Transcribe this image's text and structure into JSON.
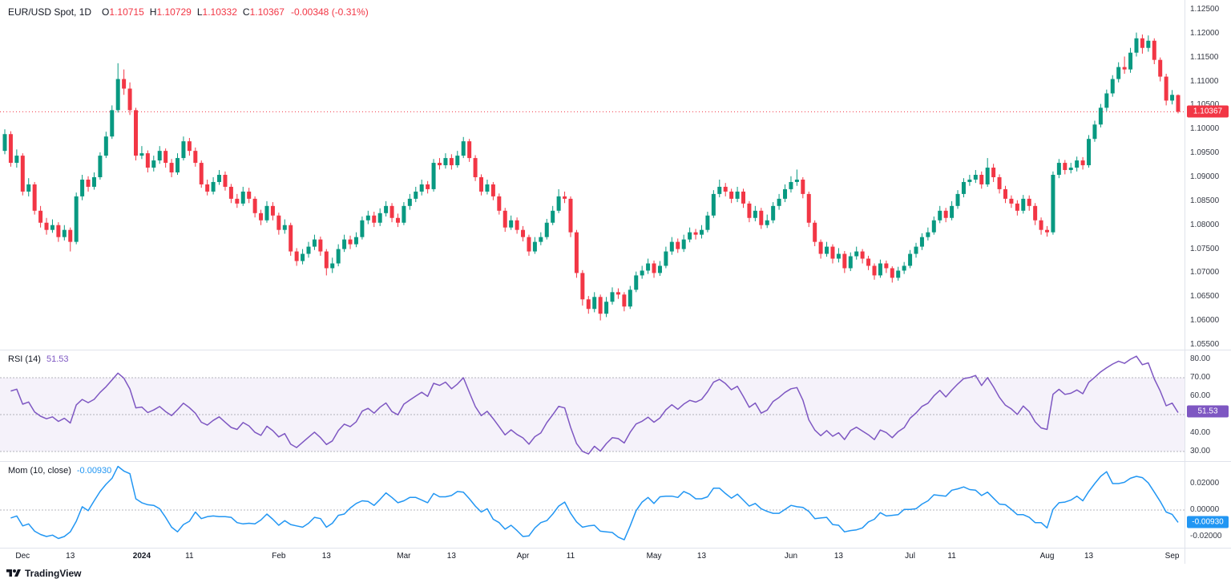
{
  "header": {
    "symbol": "EUR/USD Spot, 1D",
    "ohlc_labels": [
      "O",
      "H",
      "L",
      "C"
    ],
    "ohlc_values": [
      "1.10715",
      "1.10729",
      "1.10332",
      "1.10367"
    ],
    "change": "-0.00348 (-0.31%)"
  },
  "indicators": {
    "rsi": {
      "label": "RSI (14)",
      "value": "51.53",
      "color": "#7E57C2"
    },
    "mom": {
      "label": "Mom (10, close)",
      "value": "-0.00930",
      "color": "#2196F3"
    }
  },
  "price_axis": {
    "ticks": [
      "1.12500",
      "1.12000",
      "1.11500",
      "1.11000",
      "1.10500",
      "1.10000",
      "1.09500",
      "1.09000",
      "1.08500",
      "1.08000",
      "1.07500",
      "1.07000",
      "1.06500",
      "1.06000",
      "1.05500"
    ],
    "last_price": {
      "text": "1.10367",
      "value": 1.10367,
      "color": "#F23645"
    }
  },
  "rsi_axis": {
    "ticks": [
      "80.00",
      "70.00",
      "60.00",
      "50.00",
      "40.00",
      "30.00"
    ],
    "badge": {
      "text": "51.53",
      "value": 51.53
    }
  },
  "mom_axis": {
    "ticks": [
      "0.02000",
      "0.00000",
      "-0.02000"
    ],
    "badge": {
      "text": "-0.00930",
      "value": -0.0093
    }
  },
  "time_axis": {
    "ticks": [
      {
        "label": "Dec",
        "i": 3
      },
      {
        "label": "13",
        "i": 11
      },
      {
        "label": "2024",
        "i": 23,
        "bold": true
      },
      {
        "label": "11",
        "i": 31
      },
      {
        "label": "Feb",
        "i": 46
      },
      {
        "label": "13",
        "i": 54
      },
      {
        "label": "Mar",
        "i": 67
      },
      {
        "label": "13",
        "i": 75
      },
      {
        "label": "Apr",
        "i": 87
      },
      {
        "label": "11",
        "i": 95
      },
      {
        "label": "May",
        "i": 109
      },
      {
        "label": "13",
        "i": 117
      },
      {
        "label": "Jun",
        "i": 132
      },
      {
        "label": "13",
        "i": 140
      },
      {
        "label": "Jul",
        "i": 152
      },
      {
        "label": "11",
        "i": 159
      },
      {
        "label": "Aug",
        "i": 175
      },
      {
        "label": "13",
        "i": 182
      },
      {
        "label": "Sep",
        "i": 196
      }
    ]
  },
  "footer": {
    "logo_text": "TradingView"
  },
  "chart_data": {
    "type": "candlestick+indicators",
    "symbol": "EUR/USD Spot",
    "timeframe": "1D",
    "price_range": [
      1.054,
      1.127
    ],
    "rsi_period": 14,
    "mom_period": 10,
    "rsi_band": [
      30,
      70
    ],
    "rsi_axis_range": [
      24.8,
      85.2
    ],
    "mom_axis_range": [
      -0.0285,
      0.037
    ],
    "colors": {
      "up": "#089981",
      "down": "#F23645",
      "rsi": "#7E57C2",
      "mom": "#2196F3",
      "band": "rgba(126,87,194,0.08)",
      "grid_dash": "#9598A1",
      "separator": "#E0E3EB"
    },
    "candles": [
      [
        1.0955,
        1.1,
        1.0948,
        1.099
      ],
      [
        1.099,
        1.0996,
        1.0922,
        1.093
      ],
      [
        1.093,
        1.0958,
        1.092,
        1.0945
      ],
      [
        1.0945,
        1.095,
        1.0862,
        1.087
      ],
      [
        1.087,
        1.0898,
        1.086,
        1.0885
      ],
      [
        1.0885,
        1.089,
        1.0822,
        1.083
      ],
      [
        1.083,
        1.084,
        1.0795,
        1.0805
      ],
      [
        1.0805,
        1.0815,
        1.078,
        1.079
      ],
      [
        1.079,
        1.0812,
        1.0784,
        1.08
      ],
      [
        1.08,
        1.0806,
        1.0765,
        1.0775
      ],
      [
        1.0775,
        1.08,
        1.0768,
        1.079
      ],
      [
        1.079,
        1.0795,
        1.0745,
        1.0765
      ],
      [
        1.0765,
        1.0868,
        1.076,
        1.086
      ],
      [
        1.086,
        1.0905,
        1.0852,
        1.0895
      ],
      [
        1.0895,
        1.0902,
        1.087,
        1.088
      ],
      [
        1.088,
        1.091,
        1.0874,
        1.09
      ],
      [
        1.09,
        1.0952,
        1.0895,
        1.0945
      ],
      [
        1.0945,
        1.0995,
        1.094,
        1.0985
      ],
      [
        1.0985,
        1.105,
        1.098,
        1.104
      ],
      [
        1.104,
        1.1138,
        1.1035,
        1.1105
      ],
      [
        1.1105,
        1.1125,
        1.1072,
        1.1085
      ],
      [
        1.1085,
        1.1098,
        1.103,
        1.104
      ],
      [
        1.104,
        1.1045,
        1.0935,
        1.0945
      ],
      [
        1.0945,
        1.0965,
        1.0938,
        1.095
      ],
      [
        1.095,
        1.0956,
        1.091,
        1.092
      ],
      [
        1.092,
        1.0945,
        1.0912,
        1.0935
      ],
      [
        1.0935,
        1.0965,
        1.0928,
        1.0955
      ],
      [
        1.0955,
        1.096,
        1.092,
        1.093
      ],
      [
        1.093,
        1.0938,
        1.09,
        1.091
      ],
      [
        1.091,
        1.095,
        1.0905,
        1.094
      ],
      [
        1.094,
        1.0985,
        1.0935,
        1.0975
      ],
      [
        1.0975,
        1.0982,
        1.0945,
        1.0955
      ],
      [
        1.0955,
        1.0962,
        1.0922,
        1.093
      ],
      [
        1.093,
        1.0935,
        1.0878,
        1.0885
      ],
      [
        1.0885,
        1.0895,
        1.0862,
        1.087
      ],
      [
        1.087,
        1.09,
        1.0864,
        1.089
      ],
      [
        1.089,
        1.0915,
        1.0884,
        1.0905
      ],
      [
        1.0905,
        1.0912,
        1.0872,
        1.088
      ],
      [
        1.088,
        1.0886,
        1.0846,
        1.0855
      ],
      [
        1.0855,
        1.0865,
        1.0836,
        1.0845
      ],
      [
        1.0845,
        1.088,
        1.084,
        1.087
      ],
      [
        1.087,
        1.0878,
        1.0846,
        1.0855
      ],
      [
        1.0855,
        1.086,
        1.0816,
        1.0825
      ],
      [
        1.0825,
        1.0832,
        1.08,
        1.081
      ],
      [
        1.081,
        1.085,
        1.0805,
        1.084
      ],
      [
        1.084,
        1.0848,
        1.081,
        1.082
      ],
      [
        1.082,
        1.0826,
        1.078,
        1.079
      ],
      [
        1.079,
        1.0812,
        1.0782,
        1.08
      ],
      [
        1.08,
        1.0805,
        1.0736,
        1.0745
      ],
      [
        1.0745,
        1.0752,
        1.0715,
        1.0725
      ],
      [
        1.0725,
        1.075,
        1.0718,
        1.074
      ],
      [
        1.074,
        1.0765,
        1.0732,
        1.0755
      ],
      [
        1.0755,
        1.078,
        1.0748,
        1.077
      ],
      [
        1.077,
        1.0776,
        1.0736,
        1.0745
      ],
      [
        1.0745,
        1.075,
        1.0695,
        1.071
      ],
      [
        1.071,
        1.0732,
        1.07,
        1.072
      ],
      [
        1.072,
        1.076,
        1.0714,
        1.075
      ],
      [
        1.075,
        1.078,
        1.0744,
        1.077
      ],
      [
        1.077,
        1.0778,
        1.075,
        1.076
      ],
      [
        1.076,
        1.0785,
        1.0754,
        1.0775
      ],
      [
        1.0775,
        1.0818,
        1.077,
        1.081
      ],
      [
        1.081,
        1.083,
        1.0802,
        1.082
      ],
      [
        1.082,
        1.0828,
        1.0796,
        1.0805
      ],
      [
        1.0805,
        1.0835,
        1.0798,
        1.0825
      ],
      [
        1.0825,
        1.085,
        1.0818,
        1.084
      ],
      [
        1.084,
        1.0846,
        1.0806,
        1.0815
      ],
      [
        1.0815,
        1.0824,
        1.0796,
        1.0805
      ],
      [
        1.0805,
        1.0848,
        1.08,
        1.084
      ],
      [
        1.084,
        1.0865,
        1.0832,
        1.0855
      ],
      [
        1.0855,
        1.088,
        1.0848,
        1.087
      ],
      [
        1.087,
        1.0895,
        1.0862,
        1.0885
      ],
      [
        1.0885,
        1.0892,
        1.0866,
        1.0875
      ],
      [
        1.0875,
        1.0938,
        1.087,
        1.093
      ],
      [
        1.093,
        1.094,
        1.0916,
        1.0925
      ],
      [
        1.0925,
        1.095,
        1.0918,
        1.094
      ],
      [
        1.094,
        1.0948,
        1.0916,
        1.0925
      ],
      [
        1.0925,
        1.0955,
        1.092,
        1.0945
      ],
      [
        1.0945,
        1.0984,
        1.094,
        1.0975
      ],
      [
        1.0975,
        1.098,
        1.0932,
        1.094
      ],
      [
        1.094,
        1.0946,
        1.0892,
        1.09
      ],
      [
        1.09,
        1.0906,
        1.0862,
        1.087
      ],
      [
        1.087,
        1.0895,
        1.0864,
        1.0885
      ],
      [
        1.0885,
        1.089,
        1.0852,
        1.086
      ],
      [
        1.086,
        1.0866,
        1.0822,
        1.083
      ],
      [
        1.083,
        1.0836,
        1.0786,
        1.0795
      ],
      [
        1.0795,
        1.082,
        1.079,
        1.081
      ],
      [
        1.081,
        1.0816,
        1.0782,
        1.079
      ],
      [
        1.079,
        1.0798,
        1.0766,
        1.0775
      ],
      [
        1.0775,
        1.078,
        1.0736,
        1.0745
      ],
      [
        1.0745,
        1.0775,
        1.074,
        1.0765
      ],
      [
        1.0765,
        1.0785,
        1.0758,
        1.0775
      ],
      [
        1.0775,
        1.0813,
        1.077,
        1.0805
      ],
      [
        1.0805,
        1.084,
        1.08,
        1.083
      ],
      [
        1.083,
        1.0875,
        1.0825,
        1.086
      ],
      [
        1.086,
        1.087,
        1.0846,
        1.0855
      ],
      [
        1.0855,
        1.086,
        1.0775,
        1.0785
      ],
      [
        1.0785,
        1.079,
        1.069,
        1.07
      ],
      [
        1.07,
        1.0706,
        1.0632,
        1.0645
      ],
      [
        1.0645,
        1.0652,
        1.0615,
        1.0625
      ],
      [
        1.0625,
        1.066,
        1.0618,
        1.065
      ],
      [
        1.065,
        1.0655,
        1.0601,
        1.0615
      ],
      [
        1.0615,
        1.065,
        1.0608,
        1.064
      ],
      [
        1.064,
        1.067,
        1.0634,
        1.066
      ],
      [
        1.066,
        1.0668,
        1.0646,
        1.0655
      ],
      [
        1.0655,
        1.066,
        1.062,
        1.063
      ],
      [
        1.063,
        1.0673,
        1.0625,
        1.0665
      ],
      [
        1.0665,
        1.0703,
        1.066,
        1.0695
      ],
      [
        1.0695,
        1.0715,
        1.0688,
        1.0705
      ],
      [
        1.0705,
        1.073,
        1.0698,
        1.072
      ],
      [
        1.072,
        1.0726,
        1.069,
        1.07
      ],
      [
        1.07,
        1.0725,
        1.0694,
        1.0715
      ],
      [
        1.0715,
        1.0755,
        1.071,
        1.0745
      ],
      [
        1.0745,
        1.0775,
        1.0738,
        1.0765
      ],
      [
        1.0765,
        1.0772,
        1.0742,
        1.075
      ],
      [
        1.075,
        1.078,
        1.0744,
        1.077
      ],
      [
        1.077,
        1.0795,
        1.0764,
        1.0785
      ],
      [
        1.0785,
        1.0792,
        1.077,
        1.078
      ],
      [
        1.078,
        1.08,
        1.0772,
        1.079
      ],
      [
        1.079,
        1.0828,
        1.0785,
        1.082
      ],
      [
        1.082,
        1.0873,
        1.0815,
        1.0865
      ],
      [
        1.0865,
        1.0895,
        1.0858,
        1.088
      ],
      [
        1.088,
        1.0888,
        1.086,
        1.087
      ],
      [
        1.087,
        1.0876,
        1.0846,
        1.0855
      ],
      [
        1.0855,
        1.088,
        1.0848,
        1.087
      ],
      [
        1.087,
        1.0876,
        1.0836,
        1.0845
      ],
      [
        1.0845,
        1.085,
        1.0806,
        1.0815
      ],
      [
        1.0815,
        1.084,
        1.0808,
        1.083
      ],
      [
        1.083,
        1.0836,
        1.0792,
        1.08
      ],
      [
        1.08,
        1.0822,
        1.0794,
        1.081
      ],
      [
        1.081,
        1.0848,
        1.0804,
        1.084
      ],
      [
        1.084,
        1.0865,
        1.0832,
        1.0855
      ],
      [
        1.0855,
        1.0885,
        1.0848,
        1.0875
      ],
      [
        1.0875,
        1.0902,
        1.0868,
        1.089
      ],
      [
        1.089,
        1.0916,
        1.0882,
        1.0895
      ],
      [
        1.0895,
        1.09,
        1.0856,
        1.0865
      ],
      [
        1.0865,
        1.087,
        1.0796,
        1.0805
      ],
      [
        1.0805,
        1.081,
        1.0756,
        1.0765
      ],
      [
        1.0765,
        1.077,
        1.073,
        1.074
      ],
      [
        1.074,
        1.0765,
        1.0734,
        1.0755
      ],
      [
        1.0755,
        1.076,
        1.072,
        1.073
      ],
      [
        1.073,
        1.0752,
        1.0722,
        1.074
      ],
      [
        1.074,
        1.0746,
        1.07,
        1.071
      ],
      [
        1.071,
        1.0743,
        1.0704,
        1.0735
      ],
      [
        1.0735,
        1.0755,
        1.0728,
        1.0745
      ],
      [
        1.0745,
        1.075,
        1.072,
        1.073
      ],
      [
        1.073,
        1.0736,
        1.0706,
        1.0715
      ],
      [
        1.0715,
        1.072,
        1.0686,
        1.0695
      ],
      [
        1.0695,
        1.0728,
        1.069,
        1.072
      ],
      [
        1.072,
        1.0726,
        1.07,
        1.071
      ],
      [
        1.071,
        1.0714,
        1.068,
        1.069
      ],
      [
        1.069,
        1.0713,
        1.0684,
        1.0705
      ],
      [
        1.0705,
        1.0723,
        1.0698,
        1.0715
      ],
      [
        1.0715,
        1.0748,
        1.071,
        1.074
      ],
      [
        1.074,
        1.0763,
        1.0732,
        1.0755
      ],
      [
        1.0755,
        1.0783,
        1.0748,
        1.0775
      ],
      [
        1.0775,
        1.0795,
        1.0768,
        1.0785
      ],
      [
        1.0785,
        1.0818,
        1.078,
        1.081
      ],
      [
        1.081,
        1.084,
        1.0804,
        1.083
      ],
      [
        1.083,
        1.0836,
        1.0806,
        1.0815
      ],
      [
        1.0815,
        1.085,
        1.081,
        1.084
      ],
      [
        1.084,
        1.0873,
        1.0834,
        1.0865
      ],
      [
        1.0865,
        1.0898,
        1.0858,
        1.089
      ],
      [
        1.089,
        1.0905,
        1.0882,
        1.0895
      ],
      [
        1.0895,
        1.0915,
        1.0888,
        1.0905
      ],
      [
        1.0905,
        1.0912,
        1.0876,
        1.0885
      ],
      [
        1.0885,
        1.094,
        1.088,
        1.092
      ],
      [
        1.092,
        1.0928,
        1.089,
        1.09
      ],
      [
        1.09,
        1.0906,
        1.0866,
        1.0875
      ],
      [
        1.0875,
        1.0882,
        1.0846,
        1.0855
      ],
      [
        1.0855,
        1.0862,
        1.0836,
        1.0845
      ],
      [
        1.0845,
        1.0852,
        1.082,
        1.083
      ],
      [
        1.083,
        1.0863,
        1.0824,
        1.0855
      ],
      [
        1.0855,
        1.0862,
        1.083,
        1.084
      ],
      [
        1.084,
        1.0846,
        1.08,
        1.081
      ],
      [
        1.081,
        1.0816,
        1.078,
        1.079
      ],
      [
        1.079,
        1.0798,
        1.0776,
        1.0785
      ],
      [
        1.0785,
        1.0912,
        1.078,
        1.0905
      ],
      [
        1.0905,
        1.0938,
        1.0898,
        1.093
      ],
      [
        1.093,
        1.0936,
        1.0906,
        1.0915
      ],
      [
        1.0915,
        1.093,
        1.0908,
        1.092
      ],
      [
        1.092,
        1.0943,
        1.0912,
        1.0935
      ],
      [
        1.0935,
        1.0942,
        1.0916,
        1.0925
      ],
      [
        1.0925,
        1.0988,
        1.092,
        1.098
      ],
      [
        1.098,
        1.1018,
        1.0974,
        1.101
      ],
      [
        1.101,
        1.1053,
        1.1004,
        1.1045
      ],
      [
        1.1045,
        1.1083,
        1.1038,
        1.1075
      ],
      [
        1.1075,
        1.1113,
        1.1068,
        1.1105
      ],
      [
        1.1105,
        1.114,
        1.1098,
        1.113
      ],
      [
        1.113,
        1.1152,
        1.1116,
        1.1125
      ],
      [
        1.1125,
        1.117,
        1.1118,
        1.116
      ],
      [
        1.116,
        1.1202,
        1.1152,
        1.119
      ],
      [
        1.119,
        1.1198,
        1.1158,
        1.117
      ],
      [
        1.117,
        1.1196,
        1.1162,
        1.1185
      ],
      [
        1.1185,
        1.119,
        1.1136,
        1.1145
      ],
      [
        1.1145,
        1.115,
        1.11,
        1.111
      ],
      [
        1.111,
        1.1116,
        1.105,
        1.106
      ],
      [
        1.106,
        1.1082,
        1.1052,
        1.1072
      ],
      [
        1.10715,
        1.10729,
        1.10332,
        1.10367
      ]
    ]
  }
}
